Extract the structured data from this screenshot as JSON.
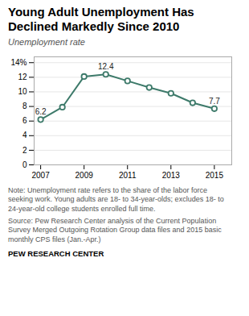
{
  "chart_data": {
    "type": "line",
    "title": "Young Adult Unemployment Has\nDeclined Markedly Since 2010",
    "subtitle": "Unemployment rate",
    "x": [
      2007,
      2008,
      2009,
      2010,
      2011,
      2012,
      2013,
      2014,
      2015
    ],
    "values": [
      6.2,
      7.9,
      12.1,
      12.4,
      11.5,
      10.6,
      9.8,
      8.5,
      7.7
    ],
    "color": "#3d7a6a",
    "marker": "circle",
    "xlim": [
      2006.7,
      2015.8
    ],
    "xticks": [
      2007,
      2009,
      2011,
      2013,
      2015
    ],
    "ylim": [
      0,
      14.8
    ],
    "yticks": [
      0,
      2,
      4,
      6,
      8,
      10,
      12,
      {
        "value": 14,
        "label": "14%"
      }
    ],
    "grid": true,
    "annotations": [
      {
        "x": 2007,
        "y": 6.2,
        "text": "6.2"
      },
      {
        "x": 2010,
        "y": 12.4,
        "text": "12.4"
      },
      {
        "x": 2015,
        "y": 7.7,
        "text": "7.7"
      }
    ],
    "note": "Note: Unemployment rate refers to the share of the labor force\nseeking work. Young adults are 18- to 34-year-olds; excludes 18- to\n24-year-old college students enrolled full time.",
    "source": "Source: Pew Research Center analysis of the Current Population\nSurvey Merged Outgoing Rotation Group data files and 2015 basic\nmonthly CPS files (Jan.-Apr.)",
    "footer": "PEW RESEARCH CENTER"
  }
}
